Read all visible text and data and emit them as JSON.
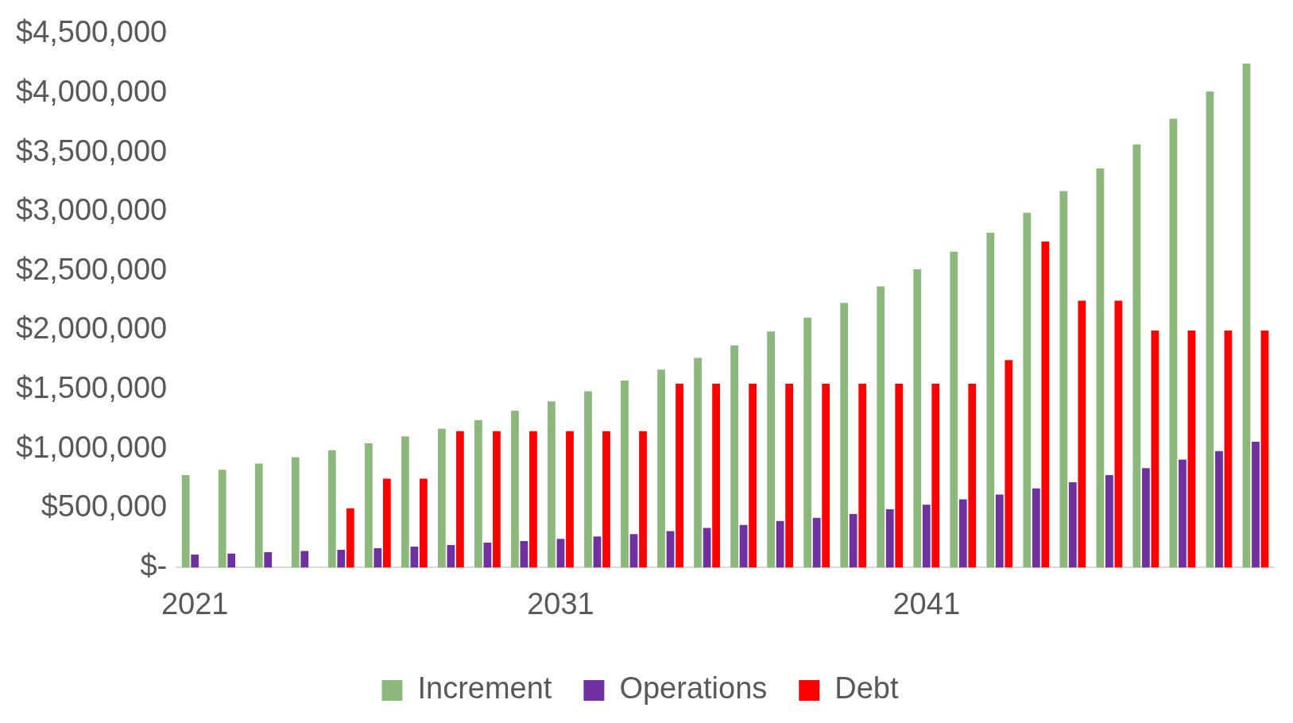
{
  "chart_data": {
    "type": "bar",
    "categories": [
      "2021",
      null,
      null,
      null,
      null,
      null,
      null,
      null,
      null,
      null,
      "2031",
      null,
      null,
      null,
      null,
      null,
      null,
      null,
      null,
      null,
      "2041",
      null,
      null,
      null,
      null,
      null,
      null,
      null,
      null,
      null
    ],
    "series": [
      {
        "name": "Increment",
        "color": "#8db87c",
        "values": [
          780000,
          825000,
          877000,
          930000,
          989000,
          1048000,
          1107000,
          1172000,
          1244000,
          1323000,
          1401000,
          1487000,
          1578000,
          1670000,
          1768000,
          1873000,
          1991000,
          2109000,
          2233000,
          2371000,
          2515000,
          2665000,
          2823000,
          2993000,
          3176000,
          3366000,
          3569000,
          3785000,
          4014000,
          4250000
        ]
      },
      {
        "name": "Operations",
        "color": "#7030a0",
        "values": [
          110000,
          118000,
          130000,
          140000,
          150000,
          164000,
          177000,
          190000,
          210000,
          223000,
          242000,
          262000,
          282000,
          308000,
          334000,
          360000,
          393000,
          420000,
          452000,
          491000,
          530000,
          576000,
          616000,
          668000,
          720000,
          780000,
          838000,
          910000,
          982000,
          1061000
        ]
      },
      {
        "name": "Debt",
        "color": "#ff0000",
        "values": [
          null,
          null,
          null,
          null,
          500000,
          750000,
          750000,
          1150000,
          1150000,
          1150000,
          1150000,
          1150000,
          1150000,
          1550000,
          1550000,
          1550000,
          1550000,
          1550000,
          1550000,
          1550000,
          1550000,
          1550000,
          1750000,
          2750000,
          2250000,
          2250000,
          2000000,
          2000000,
          2000000,
          2000000
        ]
      }
    ],
    "ylim": [
      0,
      4500000
    ],
    "yticks": [
      {
        "value": 0,
        "label": "$-"
      },
      {
        "value": 500000,
        "label": "$500,000"
      },
      {
        "value": 1000000,
        "label": "$1,000,000"
      },
      {
        "value": 1500000,
        "label": "$1,500,000"
      },
      {
        "value": 2000000,
        "label": "$2,000,000"
      },
      {
        "value": 2500000,
        "label": "$2,500,000"
      },
      {
        "value": 3000000,
        "label": "$3,000,000"
      },
      {
        "value": 3500000,
        "label": "$3,500,000"
      },
      {
        "value": 4000000,
        "label": "$4,000,000"
      },
      {
        "value": 4500000,
        "label": "$4,500,000"
      }
    ],
    "grid": false,
    "legend": "bottom"
  }
}
